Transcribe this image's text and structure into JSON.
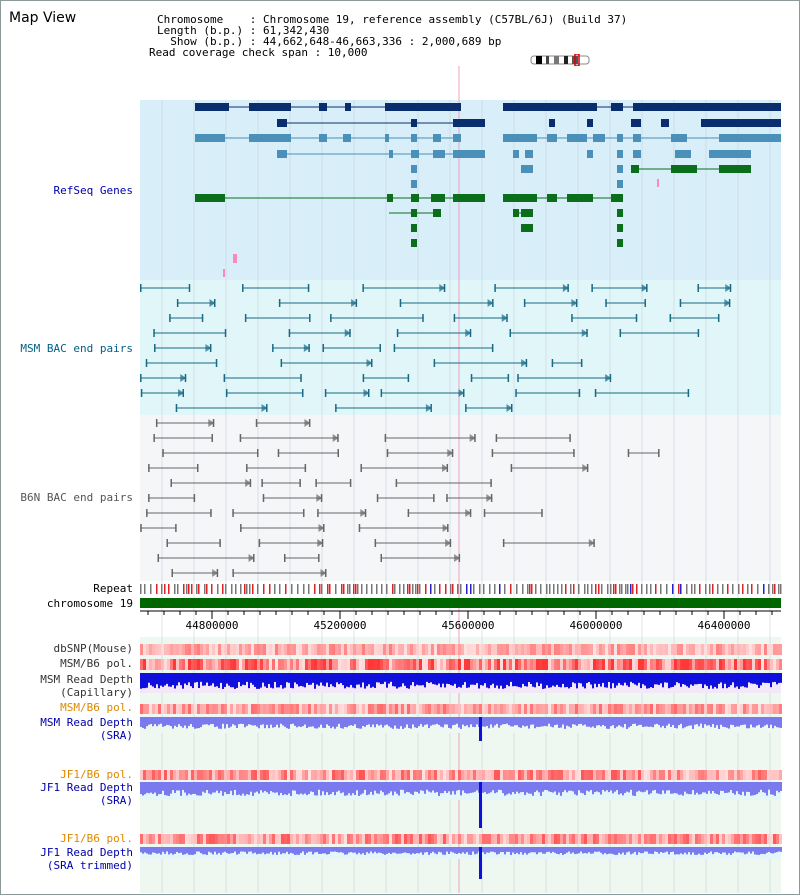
{
  "header": {
    "title": "Map View",
    "info_lines": [
      "Chromosome    : Chromosome 19, reference assembly (C57BL/6J) (Build 37)",
      "Length (b.p.) : 61,342,430",
      "  Show (b.p.) : 44,662,648-46,663,336 : 2,000,689 bp",
      "Read coverage check span : 10,000"
    ]
  },
  "tracks": {
    "refseq": {
      "label": "RefSeq Genes",
      "color": "#0000aa"
    },
    "msm_bac": {
      "label": "MSM BAC end pairs",
      "color": "#005f87"
    },
    "b6n_bac": {
      "label": "B6N BAC end pairs",
      "color": "#555555"
    },
    "repeat": {
      "label": "Repeat"
    },
    "chromosome": {
      "label": "chromosome 19",
      "color": "#006600"
    },
    "dbsnp": {
      "label": "dbSNP(Mouse)"
    },
    "msm_pol": {
      "label": "MSM/B6 pol."
    },
    "msm_depth_cap": {
      "label_line1": "MSM Read Depth",
      "label_line2": "(Capillary)"
    },
    "msm_pol2": {
      "label": "MSM/B6 pol.",
      "color": "#dd8800"
    },
    "msm_depth_sra": {
      "label_line1": "MSM Read Depth",
      "label_line2": "(SRA)"
    },
    "jf1_pol1": {
      "label": "JF1/B6 pol.",
      "color": "#dd8800"
    },
    "jf1_depth_sra": {
      "label_line1": "JF1 Read Depth",
      "label_line2": "(SRA)"
    },
    "jf1_pol2": {
      "label": "JF1/B6 pol.",
      "color": "#dd8800"
    },
    "jf1_depth_trim": {
      "label_line1": "JF1 Read Depth",
      "label_line2": "(SRA trimmed)"
    }
  },
  "axis": {
    "ticks": [
      "44800000",
      "45200000",
      "45600000",
      "46000000",
      "46400000"
    ]
  },
  "colors": {
    "refseq_dark": "#0a2d6e",
    "refseq_mid": "#4a90b8",
    "refseq_green": "#0a6e1a",
    "depth_blue": "#1010dd",
    "depth_light": "#7a7aee"
  }
}
